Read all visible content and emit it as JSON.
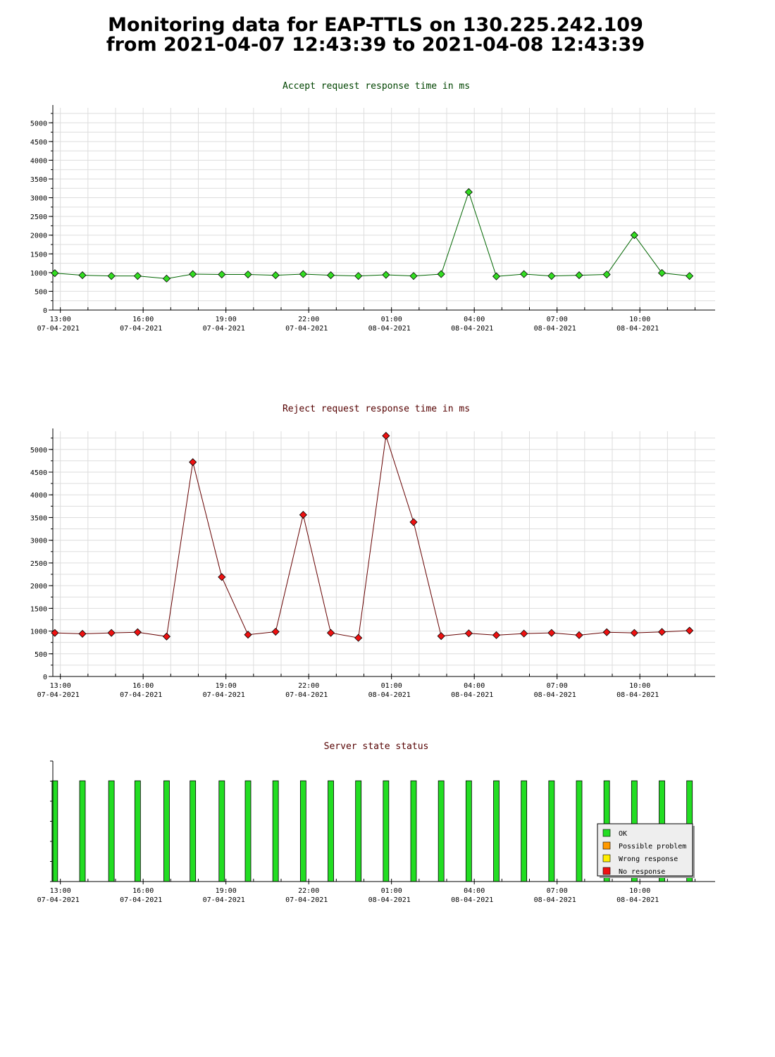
{
  "page": {
    "title_line1": "Monitoring data for EAP-TTLS on 130.225.242.109",
    "title_line2": "from 2021-04-07 12:43:39 to 2021-04-08 12:43:39"
  },
  "colors": {
    "accept_title": "#004400",
    "reject_title": "#550000",
    "status_title": "#550000",
    "accept_line": "#006600",
    "reject_line": "#660000",
    "accept_marker": "#33dd22",
    "reject_marker": "#ee1111",
    "ok": "#22dd22",
    "possible_problem": "#ff9900",
    "wrong_response": "#ffee00",
    "no_response": "#ee1111",
    "grid": "#dddddd"
  },
  "x_axis": {
    "ticks": [
      {
        "time": "13:00",
        "date": "07-04-2021"
      },
      {
        "time": "16:00",
        "date": "07-04-2021"
      },
      {
        "time": "19:00",
        "date": "07-04-2021"
      },
      {
        "time": "22:00",
        "date": "07-04-2021"
      },
      {
        "time": "01:00",
        "date": "08-04-2021"
      },
      {
        "time": "04:00",
        "date": "08-04-2021"
      },
      {
        "time": "07:00",
        "date": "08-04-2021"
      },
      {
        "time": "10:00",
        "date": "08-04-2021"
      }
    ]
  },
  "chart_data": [
    {
      "type": "line",
      "title": "Accept request response time in ms",
      "x": [
        "12:48",
        "13:48",
        "14:51",
        "15:48",
        "16:51",
        "17:48",
        "18:51",
        "19:48",
        "20:48",
        "21:48",
        "22:48",
        "23:48",
        "00:48",
        "01:48",
        "02:48",
        "03:48",
        "04:48",
        "05:48",
        "06:48",
        "07:48",
        "08:48",
        "09:48",
        "10:48",
        "11:48"
      ],
      "values": [
        985,
        930,
        910,
        910,
        840,
        960,
        950,
        950,
        930,
        960,
        930,
        910,
        940,
        910,
        960,
        3150,
        900,
        960,
        910,
        930,
        950,
        2000,
        990,
        910
      ],
      "ylim": [
        0,
        5400
      ],
      "yticks": [
        0,
        500,
        1000,
        1500,
        2000,
        2500,
        3000,
        3500,
        4000,
        4500,
        5000
      ],
      "grid": true
    },
    {
      "type": "line",
      "title": "Reject request response time in ms",
      "x": [
        "12:48",
        "13:48",
        "14:51",
        "15:48",
        "16:51",
        "17:48",
        "18:51",
        "19:48",
        "20:48",
        "21:48",
        "22:48",
        "23:48",
        "00:48",
        "01:48",
        "02:48",
        "03:48",
        "04:48",
        "05:48",
        "06:48",
        "07:48",
        "08:48",
        "09:48",
        "10:48",
        "11:48"
      ],
      "values": [
        960,
        940,
        960,
        975,
        880,
        4720,
        2190,
        920,
        985,
        3560,
        960,
        850,
        5300,
        3400,
        890,
        950,
        910,
        945,
        960,
        910,
        975,
        960,
        980,
        1010
      ],
      "ylim": [
        0,
        5400
      ],
      "yticks": [
        0,
        500,
        1000,
        1500,
        2000,
        2500,
        3000,
        3500,
        4000,
        4500,
        5000
      ],
      "grid": true
    },
    {
      "type": "bar",
      "title": "Server state status",
      "x": [
        "12:48",
        "13:48",
        "14:51",
        "15:48",
        "16:51",
        "17:48",
        "18:51",
        "19:48",
        "20:48",
        "21:48",
        "22:48",
        "23:48",
        "00:48",
        "01:48",
        "02:48",
        "03:48",
        "04:48",
        "05:48",
        "06:48",
        "07:48",
        "08:48",
        "09:48",
        "10:48",
        "11:48"
      ],
      "values": [
        "OK",
        "OK",
        "OK",
        "OK",
        "OK",
        "OK",
        "OK",
        "OK",
        "OK",
        "OK",
        "OK",
        "OK",
        "OK",
        "OK",
        "OK",
        "OK",
        "OK",
        "OK",
        "OK",
        "OK",
        "OK",
        "OK",
        "OK",
        "OK"
      ],
      "legend": [
        "OK",
        "Possible problem",
        "Wrong response",
        "No response"
      ],
      "legend_position": "bottom-right",
      "grid": false
    }
  ]
}
